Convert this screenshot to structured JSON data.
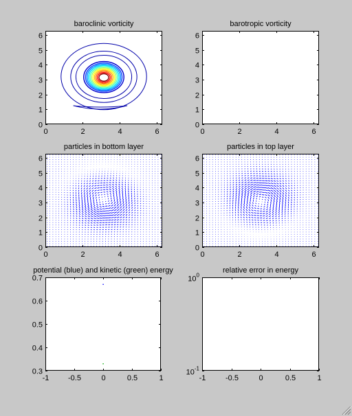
{
  "window": {
    "resize_grip_icon": "resize-grip-icon"
  },
  "colors": {
    "figure_bg": "#c8c8c8",
    "axes_bg": "#ffffff",
    "contour_blue": "#0000aa",
    "quiver_blue": "#0000ff"
  },
  "chart_data": [
    {
      "type": "contour",
      "title": "baroclinic vorticity",
      "xlim": [
        0,
        6.2832
      ],
      "ylim": [
        0,
        6.2832
      ],
      "xticks": [
        0,
        2,
        4,
        6
      ],
      "yticks": [
        0,
        1,
        2,
        3,
        4,
        5,
        6
      ],
      "x": [
        3.1416
      ],
      "y": [
        3.1416
      ],
      "levels": [
        {
          "radius": 0.18,
          "color": "#ffffff"
        },
        {
          "radius": 0.26,
          "color": "#8b0000"
        },
        {
          "radius": 0.34,
          "color": "#ff0000"
        },
        {
          "radius": 0.42,
          "color": "#ff6000"
        },
        {
          "radius": 0.5,
          "color": "#ffb000"
        },
        {
          "radius": 0.58,
          "color": "#ffff00"
        },
        {
          "radius": 0.66,
          "color": "#a0ff60"
        },
        {
          "radius": 0.74,
          "color": "#40ffc0"
        },
        {
          "radius": 0.82,
          "color": "#00e0ff"
        },
        {
          "radius": 0.9,
          "color": "#0090ff"
        },
        {
          "radius": 0.98,
          "color": "#0040ff"
        },
        {
          "radius": 1.08,
          "color": "#0000cc"
        },
        {
          "radius": 1.5,
          "color": "#0000aa"
        },
        {
          "radius": 1.78,
          "color": "#0000aa"
        },
        {
          "radius": 2.3,
          "color": "#0000aa"
        }
      ],
      "lower_contour": {
        "x": [
          1.5,
          4.4
        ],
        "y": 1.25
      }
    },
    {
      "type": "contour",
      "title": "barotropic vorticity",
      "xlim": [
        0,
        6.2832
      ],
      "ylim": [
        0,
        6.2832
      ],
      "xticks": [
        0,
        2,
        4,
        6
      ],
      "yticks": [
        0,
        1,
        2,
        3,
        4,
        5,
        6
      ],
      "levels": []
    },
    {
      "type": "quiver",
      "title": "particles in bottom layer",
      "xlim": [
        0,
        6.2832
      ],
      "ylim": [
        0,
        6.2832
      ],
      "xticks": [
        0,
        2,
        4,
        6
      ],
      "yticks": [
        0,
        1,
        2,
        3,
        4,
        5,
        6
      ],
      "grid_n": 40,
      "vortex_center": [
        3.1416,
        3.1416
      ],
      "vortex_strength": 0.5,
      "vortex_radius": 0.9
    },
    {
      "type": "quiver",
      "title": "particles in top layer",
      "xlim": [
        0,
        6.2832
      ],
      "ylim": [
        0,
        6.2832
      ],
      "xticks": [
        0,
        2,
        4,
        6
      ],
      "yticks": [
        0,
        1,
        2,
        3,
        4,
        5,
        6
      ],
      "grid_n": 40,
      "vortex_center": [
        3.1416,
        3.1416
      ],
      "vortex_strength": -0.5,
      "vortex_radius": 0.9
    },
    {
      "type": "scatter",
      "title": "potential (blue) and kinetic (green) energy",
      "xlim": [
        -1,
        1
      ],
      "ylim": [
        0.3,
        0.7
      ],
      "xticks": [
        -1,
        -0.5,
        0,
        0.5,
        1
      ],
      "yticks": [
        0.3,
        0.4,
        0.5,
        0.6,
        0.7
      ],
      "series": [
        {
          "x": [
            0
          ],
          "y": [
            0.67
          ],
          "color": "#0000ff"
        },
        {
          "x": [
            0
          ],
          "y": [
            0.33
          ],
          "color": "#00aa00"
        }
      ]
    },
    {
      "type": "line",
      "title": "relative error in energy",
      "xlim": [
        -1,
        1
      ],
      "ylim": [
        0.1,
        1
      ],
      "yscale": "log",
      "xticks": [
        -1,
        -0.5,
        0,
        0.5,
        1
      ],
      "yticks": [
        {
          "base": "10",
          "exp": "0",
          "value": 1
        },
        {
          "base": "10",
          "exp": "-1",
          "value": 0.1
        }
      ],
      "series": []
    }
  ]
}
